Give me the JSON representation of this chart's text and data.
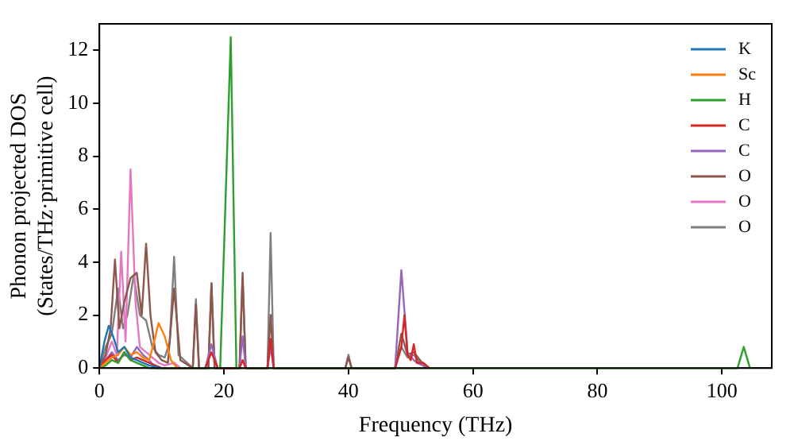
{
  "chart_data": {
    "type": "line",
    "xlabel": "Frequency (THz)",
    "ylabel": "Phonon projected DOS\n(States/THz·primitive cell)",
    "xlim": [
      0,
      108
    ],
    "ylim": [
      0,
      13
    ],
    "xticks": [
      0,
      20,
      40,
      60,
      80,
      100
    ],
    "yticks": [
      0,
      2,
      4,
      6,
      8,
      10,
      12
    ],
    "grid": false,
    "legend": "top right",
    "marker": "none",
    "line_style": "solid",
    "series": [
      {
        "name": "K",
        "color": "#1f77b4",
        "x": [
          0,
          0.8,
          1.5,
          2.2,
          3,
          4,
          5,
          6,
          7,
          8,
          9,
          10
        ],
        "values": [
          0,
          1.0,
          1.6,
          1.2,
          0.6,
          0.8,
          0.4,
          0.3,
          0.2,
          0.1,
          0.05,
          0
        ]
      },
      {
        "name": "Sc",
        "color": "#ff7f0e",
        "x": [
          0,
          1,
          2,
          3,
          4,
          5,
          6,
          7,
          8,
          9,
          9.5,
          10.5,
          11.5,
          12.5
        ],
        "values": [
          0,
          0.2,
          0.4,
          0.5,
          0.8,
          0.5,
          0.6,
          0.4,
          0.3,
          1.2,
          1.7,
          1.2,
          0.3,
          0
        ]
      },
      {
        "name": "H",
        "color": "#2ca02c",
        "x": [
          0,
          1,
          2,
          3,
          4,
          5,
          6,
          7,
          8,
          19.4,
          21.1,
          22,
          23,
          102.5,
          103.5,
          104.5
        ],
        "values": [
          0,
          0.1,
          0.3,
          0.2,
          0.6,
          0.3,
          0.2,
          0.1,
          0,
          0,
          12.5,
          0,
          0,
          0,
          0.8,
          0
        ]
      },
      {
        "name": "C",
        "color": "#d62728",
        "x": [
          0,
          1,
          2,
          3,
          4,
          5,
          6,
          7,
          8,
          9,
          10,
          17,
          18,
          19,
          22.5,
          23,
          23.5,
          27,
          27.5,
          28,
          47.5,
          48.5,
          49,
          49.5,
          50,
          50.5,
          51,
          52,
          53
        ],
        "values": [
          0,
          0.3,
          0.5,
          0.2,
          0.6,
          0.3,
          0.4,
          0.3,
          0.2,
          0.1,
          0,
          0,
          0.6,
          0,
          0,
          0.3,
          0,
          0,
          1.1,
          0,
          0,
          0.8,
          2.0,
          0.5,
          0.3,
          0.9,
          0.2,
          0.2,
          0
        ]
      },
      {
        "name": "C",
        "color": "#9467bd",
        "x": [
          0,
          1,
          2,
          3,
          4,
          5,
          6,
          7,
          8,
          9,
          17,
          18,
          19,
          22.5,
          23,
          23.5,
          27,
          27.5,
          28,
          47.5,
          48.5,
          49.5,
          50.5,
          51,
          52,
          53
        ],
        "values": [
          0,
          0.3,
          0.6,
          0.3,
          0.5,
          0.4,
          0.8,
          0.5,
          0.3,
          0,
          0,
          0.9,
          0,
          0,
          1.2,
          0,
          0,
          0.8,
          0,
          0,
          3.7,
          0.6,
          0.3,
          0.2,
          0.1,
          0
        ]
      },
      {
        "name": "O",
        "color": "#8c564b",
        "x": [
          0,
          1,
          1.8,
          2.5,
          3.2,
          4,
          5,
          6,
          6.8,
          7.5,
          8.2,
          9,
          10,
          11,
          12,
          13,
          15,
          15.5,
          16,
          17.5,
          18,
          18.5,
          22.5,
          23,
          23.5,
          27,
          27.5,
          28,
          39.5,
          40,
          40.5,
          47.5,
          48.5,
          49.5,
          50.5,
          51.5,
          52.5
        ],
        "values": [
          0,
          0.5,
          1.5,
          4.1,
          1.5,
          2.5,
          3.4,
          3.6,
          2.0,
          4.7,
          2.0,
          0.6,
          0.3,
          0.2,
          3.0,
          0.3,
          0,
          2.4,
          0,
          0,
          3.2,
          0,
          0,
          3.6,
          0,
          0,
          2.0,
          0,
          0,
          0.4,
          0,
          0,
          1.3,
          0.5,
          0.6,
          0.3,
          0
        ]
      },
      {
        "name": "O",
        "color": "#e377c2",
        "x": [
          0,
          1,
          2,
          2.8,
          3.5,
          4.2,
          5,
          5.8,
          6.5,
          7.5,
          8.5,
          9.5,
          10.5,
          12,
          13
        ],
        "values": [
          0,
          0.4,
          1.0,
          0.5,
          4.4,
          1.0,
          7.5,
          2.5,
          0.8,
          0.6,
          0.4,
          0.2,
          0.1,
          0.2,
          0
        ]
      },
      {
        "name": "O",
        "color": "#7f7f7f",
        "x": [
          0,
          1,
          2,
          3,
          3.8,
          4.5,
          5.5,
          6.5,
          7.5,
          8.5,
          9.5,
          10.5,
          11.3,
          12,
          12.7,
          15,
          15.5,
          16,
          17.5,
          18,
          18.5,
          22.5,
          23,
          23.5,
          27,
          27.5,
          28,
          39.5,
          40,
          40.5,
          47.5,
          48.5,
          49.5,
          50.5,
          51.5,
          52.5
        ],
        "values": [
          0,
          0.8,
          1.3,
          3.0,
          1.5,
          2.0,
          3.5,
          2.0,
          1.8,
          0.8,
          0.5,
          0.4,
          1.0,
          4.2,
          0.5,
          0,
          2.6,
          0,
          0,
          3.2,
          0,
          0,
          3.4,
          0,
          0,
          5.1,
          0,
          0,
          0.5,
          0,
          0,
          0.8,
          0.4,
          0.5,
          0.2,
          0
        ]
      }
    ]
  }
}
